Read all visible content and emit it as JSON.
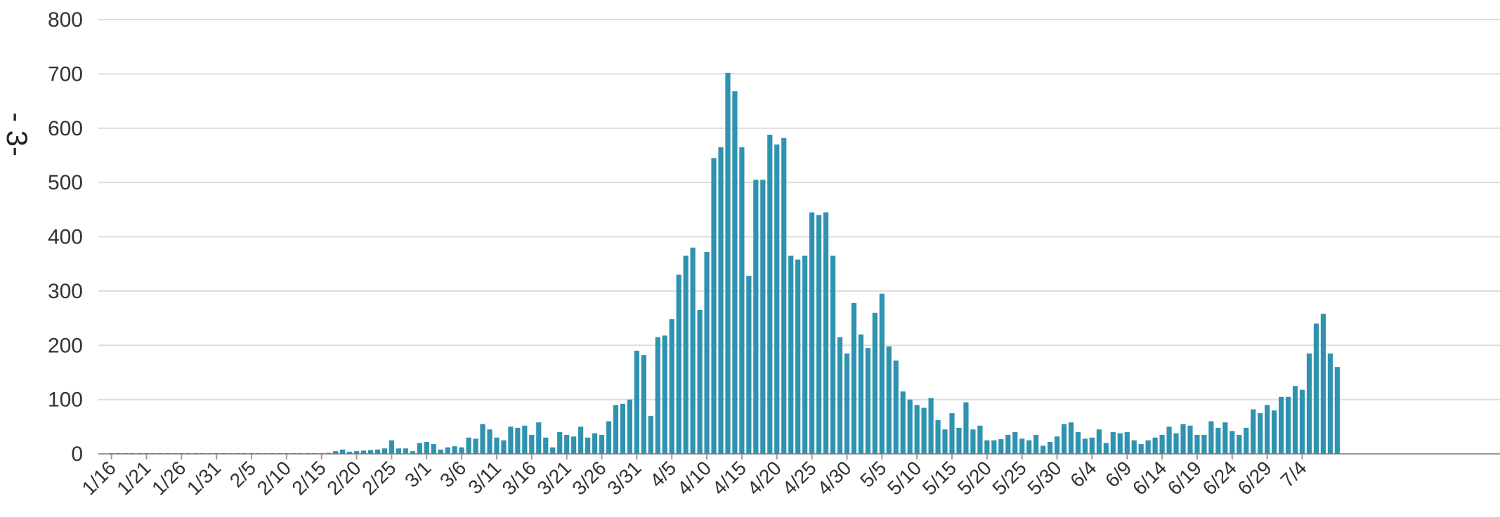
{
  "page_marker": "- 3-",
  "colors": {
    "bar": "#2f93b0",
    "grid": "#dcdcdc",
    "text": "#333333"
  },
  "chart_data": {
    "type": "bar",
    "title": "",
    "xlabel": "",
    "ylabel": "",
    "ylim": [
      0,
      800
    ],
    "y_ticks": [
      0,
      100,
      200,
      300,
      400,
      500,
      600,
      700,
      800
    ],
    "grid": true,
    "x_tick_labels": [
      "1/16",
      "1/21",
      "1/26",
      "1/31",
      "2/5",
      "2/10",
      "2/15",
      "2/20",
      "2/25",
      "3/1",
      "3/6",
      "3/11",
      "3/16",
      "3/21",
      "3/26",
      "3/31",
      "4/5",
      "4/10",
      "4/15",
      "4/20",
      "4/25",
      "4/30",
      "5/5",
      "5/10",
      "5/15",
      "5/20",
      "5/25",
      "5/30",
      "6/4",
      "6/9",
      "6/14",
      "6/19",
      "6/24",
      "6/29",
      "7/4"
    ],
    "start_date": "1/16",
    "values": [
      0,
      0,
      0,
      0,
      0,
      0,
      0,
      0,
      0,
      0,
      0,
      0,
      0,
      0,
      0,
      0,
      0,
      0,
      0,
      0,
      0,
      0,
      0,
      0,
      0,
      0,
      0,
      0,
      0,
      0,
      0,
      2,
      5,
      8,
      4,
      5,
      6,
      7,
      8,
      10,
      25,
      10,
      10,
      5,
      20,
      22,
      18,
      8,
      12,
      14,
      12,
      30,
      28,
      55,
      45,
      30,
      25,
      50,
      48,
      52,
      35,
      58,
      30,
      12,
      40,
      35,
      32,
      50,
      30,
      38,
      35,
      60,
      90,
      92,
      100,
      190,
      182,
      70,
      215,
      218,
      248,
      330,
      365,
      380,
      265,
      372,
      545,
      565,
      702,
      668,
      565,
      328,
      505,
      505,
      588,
      570,
      582,
      365,
      358,
      365,
      445,
      440,
      445,
      365,
      215,
      185,
      278,
      220,
      195,
      260,
      295,
      198,
      172,
      115,
      100,
      90,
      85,
      103,
      62,
      45,
      75,
      48,
      95,
      45,
      52,
      25,
      25,
      27,
      35,
      40,
      28,
      25,
      35,
      15,
      22,
      32,
      55,
      58,
      40,
      28,
      30,
      45,
      20,
      40,
      38,
      40,
      25,
      18,
      25,
      30,
      35,
      50,
      38,
      55,
      52,
      35,
      35,
      60,
      48,
      58,
      42,
      35,
      48,
      82,
      75,
      90,
      80,
      105,
      105,
      125,
      118,
      185,
      240,
      258,
      185,
      160
    ]
  }
}
